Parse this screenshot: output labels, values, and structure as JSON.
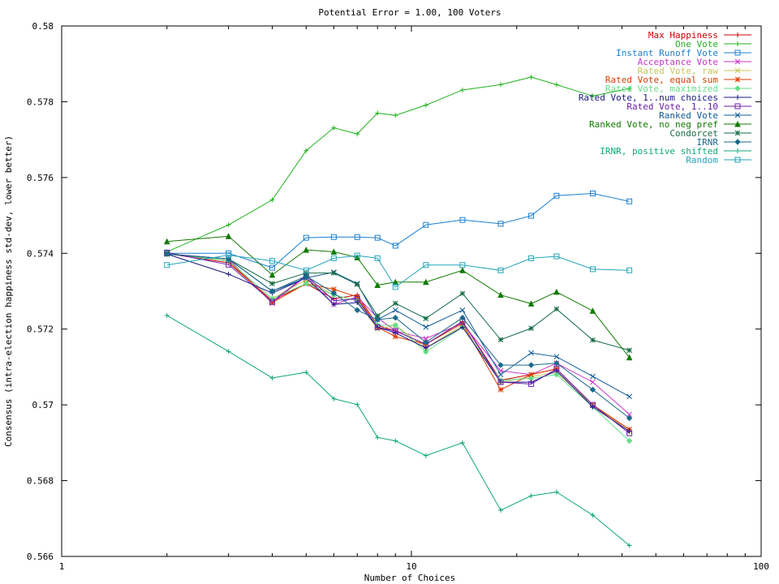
{
  "chart_data": {
    "type": "line",
    "title": "Potential Error = 1.00, 100 Voters",
    "xlabel": "Number of Choices",
    "ylabel": "Consensus (intra-election happiness std-dev, lower better)",
    "x_scale": "log",
    "xlim": [
      1,
      100
    ],
    "ylim": [
      0.566,
      0.58
    ],
    "x_ticks": [
      1,
      10,
      100
    ],
    "x_tick_labels": [
      "1",
      "10",
      "100"
    ],
    "y_ticks": [
      0.566,
      0.568,
      0.57,
      0.572,
      0.574,
      0.576,
      0.578,
      0.58
    ],
    "y_tick_labels": [
      "0.566",
      "0.568",
      "0.57",
      "0.572",
      "0.574",
      "0.576",
      "0.578",
      "0.58"
    ],
    "grid": false,
    "legend_position": "top-right",
    "x": [
      2,
      3,
      4,
      5,
      6,
      7,
      8,
      9,
      11,
      14,
      18,
      22,
      26,
      33,
      42
    ],
    "series": [
      {
        "name": "Max Happiness",
        "color": "#cc0000",
        "marker": "plus",
        "values": [
          0.57399,
          0.57375,
          0.57275,
          0.5732,
          0.5728,
          0.5729,
          0.5721,
          0.57195,
          0.5716,
          0.5722,
          0.57065,
          0.5708,
          0.57095,
          0.57,
          0.56935
        ]
      },
      {
        "name": "One Vote",
        "color": "#21b21f",
        "marker": "plus",
        "values": [
          0.57404,
          0.57475,
          0.57541,
          0.57671,
          0.57731,
          0.57715,
          0.5777,
          0.57764,
          0.57791,
          0.57831,
          0.57845,
          0.57865,
          0.57845,
          0.57815,
          0.57835
        ]
      },
      {
        "name": "Instant Runoff Vote",
        "color": "#1a7fd0",
        "marker": "square",
        "values": [
          0.574,
          0.574,
          0.57362,
          0.57441,
          0.57443,
          0.57443,
          0.57441,
          0.5742,
          0.57475,
          0.57488,
          0.57478,
          0.57499,
          0.57552,
          0.57558,
          0.57537
        ]
      },
      {
        "name": "Acceptance Vote",
        "color": "#cc33cc",
        "marker": "cross",
        "values": [
          0.57399,
          0.57385,
          0.57268,
          0.5734,
          0.57265,
          0.57285,
          0.5723,
          0.57195,
          0.57175,
          0.57215,
          0.5709,
          0.5708,
          0.5711,
          0.5706,
          0.56975
        ]
      },
      {
        "name": "Rated Vote, raw",
        "color": "#c5c55a",
        "marker": "cross",
        "values": [
          0.57399,
          0.5738,
          0.5728,
          0.5733,
          0.5729,
          0.57275,
          0.572,
          0.5721,
          0.5715,
          0.5721,
          0.5706,
          0.57075,
          0.57085,
          0.57,
          0.5693
        ]
      },
      {
        "name": "Rated Vote, equal sum",
        "color": "#dd3b00",
        "marker": "star",
        "values": [
          0.57399,
          0.5738,
          0.5727,
          0.5732,
          0.57305,
          0.57285,
          0.57205,
          0.5718,
          0.5716,
          0.57215,
          0.5704,
          0.5708,
          0.57095,
          0.57,
          0.56935
        ]
      },
      {
        "name": "Rated Vote, maximized",
        "color": "#66dd88",
        "marker": "diamond",
        "values": [
          0.57399,
          0.5738,
          0.5728,
          0.5732,
          0.5729,
          0.57275,
          0.5721,
          0.5721,
          0.5714,
          0.57205,
          0.57065,
          0.5707,
          0.5708,
          0.56995,
          0.56905
        ]
      },
      {
        "name": "Rated Vote, 1..num choices",
        "color": "#181880",
        "marker": "plus",
        "values": [
          0.57398,
          0.57345,
          0.57295,
          0.57335,
          0.57265,
          0.5727,
          0.57205,
          0.5719,
          0.5715,
          0.57205,
          0.5706,
          0.5706,
          0.5709,
          0.56995,
          0.5693
        ]
      },
      {
        "name": "Rated Vote, 1..10",
        "color": "#6a1faa",
        "marker": "square",
        "values": [
          0.57402,
          0.5737,
          0.57272,
          0.57342,
          0.57275,
          0.5728,
          0.57205,
          0.57195,
          0.5716,
          0.5722,
          0.5706,
          0.57055,
          0.57095,
          0.57,
          0.56925
        ]
      },
      {
        "name": "Ranked Vote",
        "color": "#0d5a9a",
        "marker": "cross",
        "values": [
          0.57398,
          0.57385,
          0.573,
          0.57335,
          0.5735,
          0.5732,
          0.57225,
          0.5725,
          0.57205,
          0.5725,
          0.5708,
          0.57137,
          0.57127,
          0.57075,
          0.57022
        ]
      },
      {
        "name": "Ranked Vote, no neg pref",
        "color": "#117a00",
        "marker": "triangle",
        "values": [
          0.57431,
          0.57445,
          0.57343,
          0.57409,
          0.57404,
          0.57389,
          0.57316,
          0.57324,
          0.57324,
          0.57355,
          0.5729,
          0.57267,
          0.57298,
          0.57248,
          0.57125
        ]
      },
      {
        "name": "Condorcet",
        "color": "#156b44",
        "marker": "star",
        "values": [
          0.57398,
          0.57385,
          0.5732,
          0.57348,
          0.57348,
          0.57318,
          0.57235,
          0.57268,
          0.57228,
          0.57294,
          0.57172,
          0.57202,
          0.57253,
          0.57171,
          0.57144
        ]
      },
      {
        "name": "IRNR",
        "color": "#1a6a8a",
        "marker": "diamond",
        "values": [
          0.57398,
          0.57385,
          0.573,
          0.5734,
          0.57295,
          0.5725,
          0.57225,
          0.5723,
          0.57165,
          0.5723,
          0.57105,
          0.57105,
          0.5711,
          0.5704,
          0.56965
        ]
      },
      {
        "name": "IRNR, positive shifted",
        "color": "#11a77a",
        "marker": "plus",
        "values": [
          0.57236,
          0.57141,
          0.57071,
          0.57086,
          0.57016,
          0.57001,
          0.56914,
          0.56905,
          0.56866,
          0.569,
          0.56722,
          0.5676,
          0.5677,
          0.56709,
          0.56629
        ]
      },
      {
        "name": "Random",
        "color": "#22a5bb",
        "marker": "square",
        "values": [
          0.57369,
          0.57395,
          0.5738,
          0.57355,
          0.57387,
          0.57394,
          0.57387,
          0.57311,
          0.57369,
          0.57369,
          0.57355,
          0.57387,
          0.57392,
          0.57358,
          0.57355
        ]
      }
    ]
  }
}
